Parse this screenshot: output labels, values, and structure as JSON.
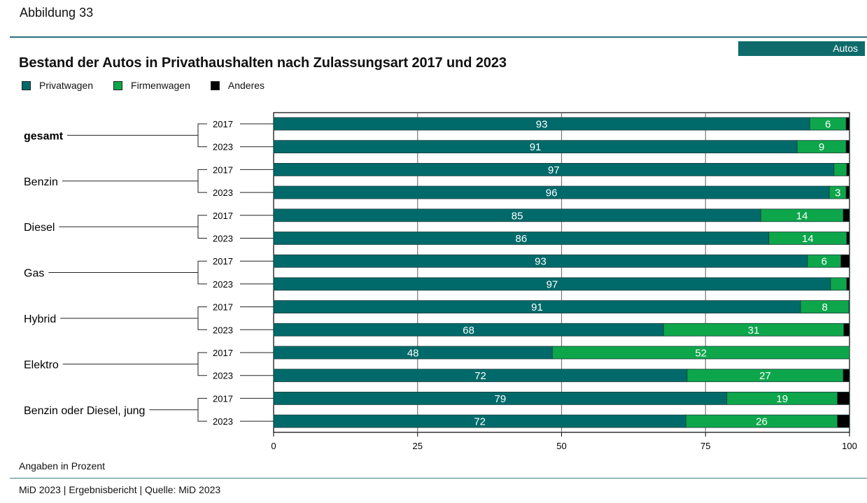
{
  "figure_number": "Abbildung 33",
  "topic_tag": "Autos",
  "unit_note": "Angaben in Prozent",
  "source": "MiD 2023 | Ergebnisbericht | Quelle: MiD 2023",
  "colors": {
    "privatwagen": "#006a6a",
    "firmenwagen": "#0da64b",
    "anderes": "#000000",
    "rule": "#2a6f7a"
  },
  "chart_data": {
    "type": "bar",
    "orientation": "horizontal",
    "stacked": true,
    "title": "Bestand der Autos in Privathaushalten nach Zulassungsart 2017 und 2023",
    "xlabel": "",
    "ylabel": "",
    "xlim": [
      0,
      100
    ],
    "x_ticks": [
      "0",
      "25",
      "50",
      "75",
      "100"
    ],
    "grid": true,
    "legend": {
      "placement": "top-left",
      "entries": [
        "Privatwagen",
        "Firmenwagen",
        "Anderes"
      ]
    },
    "groups": [
      {
        "name": "gesamt",
        "bold": true,
        "years": [
          "2017",
          "2023"
        ]
      },
      {
        "name": "Benzin",
        "bold": false,
        "years": [
          "2017",
          "2023"
        ]
      },
      {
        "name": "Diesel",
        "bold": false,
        "years": [
          "2017",
          "2023"
        ]
      },
      {
        "name": "Gas",
        "bold": false,
        "years": [
          "2017",
          "2023"
        ]
      },
      {
        "name": "Hybrid",
        "bold": false,
        "years": [
          "2017",
          "2023"
        ]
      },
      {
        "name": "Elektro",
        "bold": false,
        "years": [
          "2017",
          "2023"
        ]
      },
      {
        "name": "Benzin oder Diesel, jung",
        "bold": false,
        "years": [
          "2017",
          "2023"
        ]
      }
    ],
    "series": [
      {
        "name": "Privatwagen",
        "values": [
          93.1,
          90.9,
          97.3,
          96.5,
          84.6,
          86.0,
          92.7,
          96.7,
          91.5,
          67.7,
          48.4,
          71.8,
          78.7,
          71.6
        ],
        "labels": [
          "93",
          "91",
          "97",
          "96",
          "85",
          "86",
          "93",
          "97",
          "91",
          "68",
          "48",
          "72",
          "79",
          "72"
        ]
      },
      {
        "name": "Firmenwagen",
        "values": [
          6.3,
          8.5,
          2.2,
          2.9,
          14.3,
          13.5,
          5.8,
          2.8,
          8.4,
          31.3,
          51.6,
          27.1,
          19.2,
          26.3
        ],
        "labels": [
          "6",
          "9",
          "",
          "3",
          "14",
          "14",
          "6",
          "",
          "8",
          "31",
          "52",
          "27",
          "19",
          "26"
        ]
      },
      {
        "name": "Anderes",
        "values": [
          0.6,
          0.6,
          0.5,
          0.6,
          1.1,
          0.5,
          1.5,
          0.5,
          0.1,
          1.0,
          0.0,
          1.1,
          2.1,
          2.1
        ],
        "labels": [
          "",
          "",
          "",
          "",
          "",
          "",
          "",
          "",
          "",
          "",
          "",
          "",
          "",
          ""
        ]
      }
    ]
  }
}
